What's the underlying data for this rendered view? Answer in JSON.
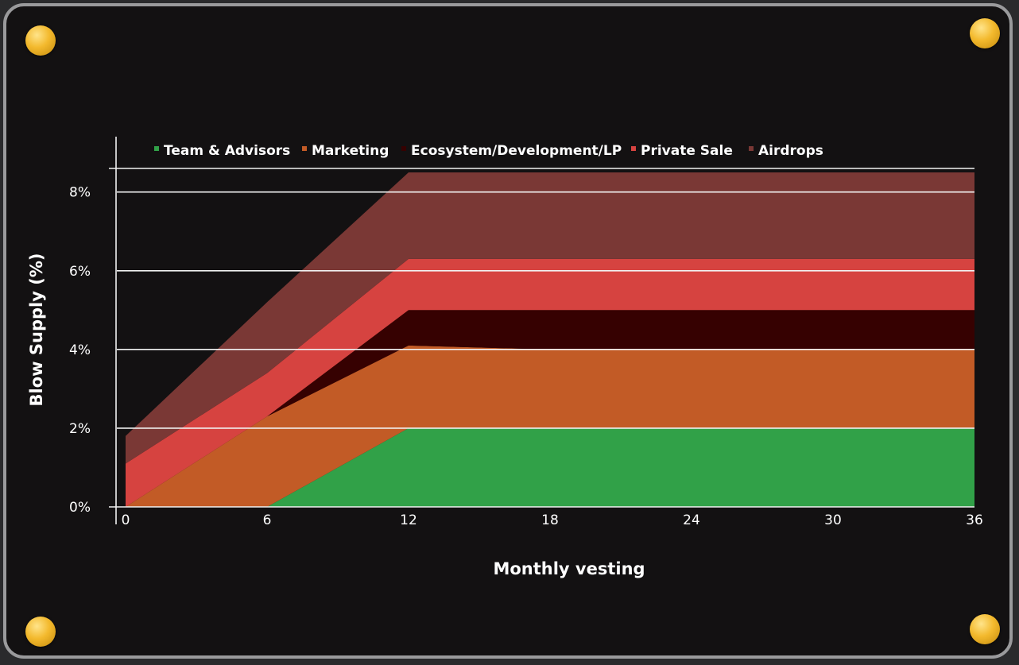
{
  "chart_data": {
    "type": "area",
    "title": "",
    "xlabel": "Monthly vesting",
    "ylabel": "Blow Supply (%)",
    "xlim": [
      0,
      36
    ],
    "ylim": [
      0,
      8.6
    ],
    "x_ticks": [
      "0",
      "6",
      "12",
      "18",
      "24",
      "30",
      "36"
    ],
    "y_ticks": [
      "0%",
      "2%",
      "4%",
      "6%",
      "8%"
    ],
    "grid": true,
    "legend_position": "top",
    "stacked": true,
    "x": [
      0,
      6,
      12,
      18,
      24,
      30,
      36
    ],
    "series": [
      {
        "name": "Team & Advisors",
        "color": "#31a148",
        "values": [
          0,
          0,
          2,
          2,
          2,
          2,
          2
        ]
      },
      {
        "name": "Marketing",
        "color": "#c25b26",
        "values": [
          0,
          2.3,
          2.1,
          2,
          2,
          2,
          2
        ]
      },
      {
        "name": "Ecosystem/Development/LP",
        "color": "#360101",
        "values": [
          0,
          0,
          0.9,
          1,
          1,
          1,
          1
        ]
      },
      {
        "name": "Private Sale",
        "color": "#d64340",
        "values": [
          1.1,
          1.1,
          1.3,
          1.3,
          1.3,
          1.3,
          1.3
        ]
      },
      {
        "name": "Airdrops",
        "color": "#7a3835",
        "values": [
          0.7,
          1.8,
          2.2,
          2.2,
          2.2,
          2.2,
          2.2
        ]
      }
    ]
  }
}
